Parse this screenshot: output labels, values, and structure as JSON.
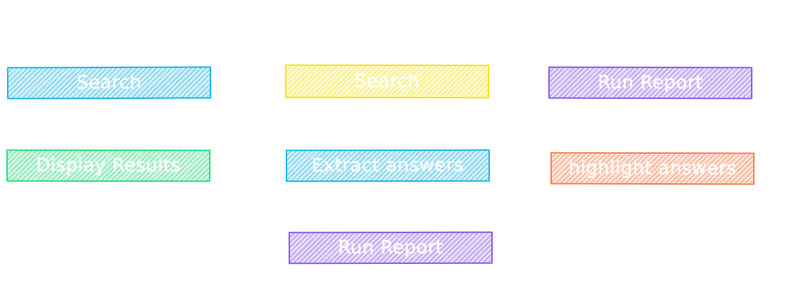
{
  "diagram": {
    "nodes": [
      {
        "id": "search-1",
        "label": "Search",
        "color": "#1fb6e6"
      },
      {
        "id": "search-2",
        "label": "Search",
        "color": "#f6e21c"
      },
      {
        "id": "run-report-1",
        "label": "Run Report",
        "color": "#8a5cf0"
      },
      {
        "id": "display-results",
        "label": "Display Results",
        "color": "#2fdc84"
      },
      {
        "id": "extract-answers",
        "label": "Extract answers",
        "color": "#1fb6e6"
      },
      {
        "id": "highlight-answers",
        "label": "highlight answers",
        "color": "#fb7e4f"
      },
      {
        "id": "run-report-2",
        "label": "Run Report",
        "color": "#8a5cf0"
      }
    ]
  }
}
